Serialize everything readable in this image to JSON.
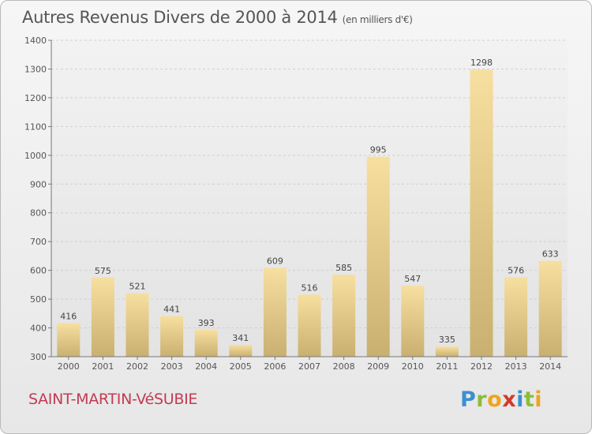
{
  "header": {
    "title": "Autres Revenus Divers de 2000 à 2014",
    "subtitle": "(en milliers d'€)"
  },
  "footer": {
    "town": "SAINT-MARTIN-VéSUBIE",
    "logo": {
      "letters": [
        "P",
        "r",
        "o",
        "x",
        "i",
        "t",
        "i"
      ],
      "colors": [
        "#3b8fd1",
        "#8bbd3c",
        "#f2a31b",
        "#d6382c",
        "#3b8fd1",
        "#8bbd3c",
        "#f2a31b"
      ]
    }
  },
  "chart_data": {
    "type": "bar",
    "categories": [
      "2000",
      "2001",
      "2002",
      "2003",
      "2004",
      "2005",
      "2006",
      "2007",
      "2008",
      "2009",
      "2010",
      "2011",
      "2012",
      "2013",
      "2014"
    ],
    "values": [
      416,
      575,
      521,
      441,
      393,
      341,
      609,
      516,
      585,
      995,
      547,
      335,
      1298,
      576,
      633
    ],
    "data_labels": [
      "416",
      "575",
      "521",
      "441",
      "393",
      "341",
      "609",
      "516",
      "585",
      "995",
      "547",
      "335",
      "1298",
      "576",
      "633"
    ],
    "title": "Autres Revenus Divers de 2000 à 2014",
    "xlabel": "",
    "ylabel": "",
    "ylim": [
      300,
      1400
    ],
    "yticks": [
      300,
      400,
      500,
      600,
      700,
      800,
      900,
      1000,
      1100,
      1200,
      1300,
      1400
    ],
    "grid": true,
    "bar_colors": {
      "light": "#f7dfa0",
      "dark": "#c9b070"
    }
  }
}
